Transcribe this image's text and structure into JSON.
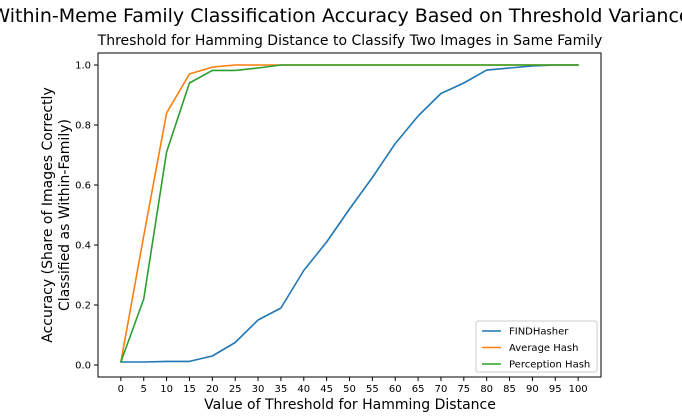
{
  "chart_data": {
    "type": "line",
    "title": "Within-Meme Family Classification Accuracy Based on Threshold Variance",
    "subtitle": "Threshold for Hamming Distance to Classify Two Images in Same Family",
    "xlabel": "Value of Threshold for Hamming Distance",
    "ylabel_lines": [
      "Accuracy (Share of Images Correctly",
      "Classified as Within-Family)"
    ],
    "x": [
      0,
      5,
      10,
      15,
      20,
      25,
      30,
      35,
      40,
      45,
      50,
      55,
      60,
      65,
      70,
      75,
      80,
      85,
      90,
      95,
      100
    ],
    "x_ticks": [
      "0",
      "5",
      "10",
      "15",
      "20",
      "25",
      "30",
      "35",
      "40",
      "45",
      "50",
      "55",
      "60",
      "65",
      "70",
      "75",
      "80",
      "85",
      "90",
      "95",
      "100"
    ],
    "y_ticks": [
      "0.0",
      "0.2",
      "0.4",
      "0.6",
      "0.8",
      "1.0"
    ],
    "xlim": [
      -5,
      105
    ],
    "ylim": [
      -0.04,
      1.04
    ],
    "grid": false,
    "legend_position": "bottom-right",
    "series": [
      {
        "name": "FINDHasher",
        "color": "#1f77b4",
        "values": [
          0.01,
          0.01,
          0.012,
          0.012,
          0.03,
          0.075,
          0.15,
          0.19,
          0.315,
          0.41,
          0.52,
          0.625,
          0.738,
          0.83,
          0.905,
          0.94,
          0.983,
          0.99,
          0.997,
          1.0,
          1.0
        ]
      },
      {
        "name": "Average Hash",
        "color": "#ff7f0e",
        "values": [
          0.01,
          0.43,
          0.84,
          0.97,
          0.993,
          1.0,
          1.0,
          1.0,
          1.0,
          1.0,
          1.0,
          1.0,
          1.0,
          1.0,
          1.0,
          1.0,
          1.0,
          1.0,
          1.0,
          1.0,
          1.0
        ]
      },
      {
        "name": "Perception Hash",
        "color": "#2ca02c",
        "values": [
          0.01,
          0.22,
          0.71,
          0.94,
          0.982,
          0.982,
          0.99,
          1.0,
          1.0,
          1.0,
          1.0,
          1.0,
          1.0,
          1.0,
          1.0,
          1.0,
          1.0,
          1.0,
          1.0,
          1.0,
          1.0
        ]
      }
    ]
  }
}
